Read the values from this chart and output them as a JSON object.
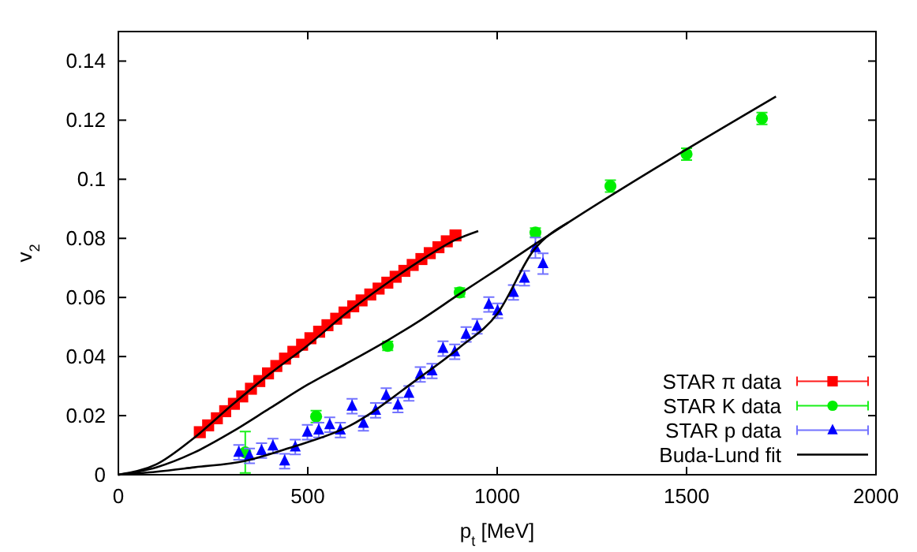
{
  "chart_data": {
    "type": "scatter",
    "xlabel": "p$_{t}$ [MeV]",
    "ylabel": "v$_{2}$",
    "xlim": [
      0,
      2000
    ],
    "ylim": [
      0,
      0.15
    ],
    "xticks": [
      0,
      500,
      1000,
      1500,
      2000
    ],
    "yticks": [
      0,
      0.02,
      0.04,
      0.06,
      0.08,
      0.1,
      0.12,
      0.14
    ],
    "grid": false,
    "legend": "bottom right",
    "series": [
      {
        "name": "STAR π data",
        "marker": "square",
        "color": "#ff0000",
        "x": [
          215,
          237,
          260,
          282,
          305,
          327,
          350,
          372,
          395,
          417,
          440,
          462,
          485,
          507,
          530,
          552,
          575,
          597,
          620,
          642,
          665,
          687,
          710,
          732,
          755,
          777,
          800,
          822,
          845,
          867,
          890
        ],
        "values": [
          0.0144,
          0.0167,
          0.0191,
          0.0215,
          0.024,
          0.0265,
          0.0291,
          0.0317,
          0.0343,
          0.0368,
          0.0393,
          0.0416,
          0.044,
          0.0462,
          0.0484,
          0.0506,
          0.0528,
          0.0549,
          0.057,
          0.059,
          0.061,
          0.063,
          0.065,
          0.067,
          0.069,
          0.071,
          0.073,
          0.075,
          0.077,
          0.079,
          0.081
        ]
      },
      {
        "name": "STAR K data",
        "marker": "circle",
        "color": "#00ee00",
        "x": [
          335,
          522,
          711,
          901,
          1101,
          1299,
          1500,
          1699
        ],
        "values": [
          0.0076,
          0.0197,
          0.0436,
          0.0617,
          0.082,
          0.0977,
          0.1085,
          0.1206
        ],
        "errors": [
          0.007,
          0.002,
          0.0015,
          0.0015,
          0.0015,
          0.002,
          0.002,
          0.002
        ]
      },
      {
        "name": "STAR p data",
        "marker": "triangle",
        "color": "#0000ff",
        "x": [
          318,
          346,
          378,
          408,
          439,
          467,
          499,
          529,
          558,
          586,
          617,
          647,
          679,
          707,
          738,
          767,
          797,
          828,
          857,
          888,
          918,
          947,
          978,
          1001,
          1043,
          1072,
          1101,
          1121
        ],
        "values": [
          0.0076,
          0.0064,
          0.0082,
          0.0097,
          0.0046,
          0.0094,
          0.0144,
          0.0151,
          0.0169,
          0.0151,
          0.0232,
          0.0174,
          0.0218,
          0.0268,
          0.0236,
          0.0275,
          0.0339,
          0.0351,
          0.0427,
          0.0416,
          0.0475,
          0.0502,
          0.0576,
          0.0555,
          0.0617,
          0.0665,
          0.0768,
          0.0714
        ],
        "errors": [
          0.0025,
          0.0025,
          0.0025,
          0.0025,
          0.0025,
          0.0025,
          0.0025,
          0.0025,
          0.0025,
          0.0025,
          0.0025,
          0.0025,
          0.0025,
          0.0025,
          0.0025,
          0.0025,
          0.0025,
          0.0025,
          0.0025,
          0.0025,
          0.0025,
          0.0025,
          0.0025,
          0.0025,
          0.0025,
          0.0025,
          0.0035,
          0.0035
        ]
      },
      {
        "name": "Buda-Lund fit",
        "type": "line",
        "color": "#000000",
        "x": [
          0,
          100,
          200,
          300,
          400,
          500,
          600,
          700,
          800,
          890,
          950
        ],
        "values": [
          0,
          0.0035,
          0.0125,
          0.0236,
          0.0342,
          0.0438,
          0.0545,
          0.064,
          0.0727,
          0.0795,
          0.0825
        ]
      },
      {
        "type": "line",
        "color": "#000000",
        "x": [
          0,
          100,
          200,
          300,
          400,
          500,
          600,
          711,
          800,
          901,
          1000,
          1096,
          1187,
          1736
        ],
        "values": [
          0,
          0.0025,
          0.0075,
          0.0145,
          0.0225,
          0.0305,
          0.0375,
          0.0455,
          0.0525,
          0.0612,
          0.0695,
          0.0777,
          0.0853,
          0.128
        ]
      },
      {
        "type": "line",
        "color": "#000000",
        "x": [
          0,
          100,
          200,
          332,
          450,
          610,
          790,
          900,
          1001,
          1096,
          1187
        ],
        "values": [
          0,
          0.001,
          0.0025,
          0.0046,
          0.009,
          0.0165,
          0.0324,
          0.043,
          0.0546,
          0.0759,
          0.0853
        ]
      }
    ]
  }
}
